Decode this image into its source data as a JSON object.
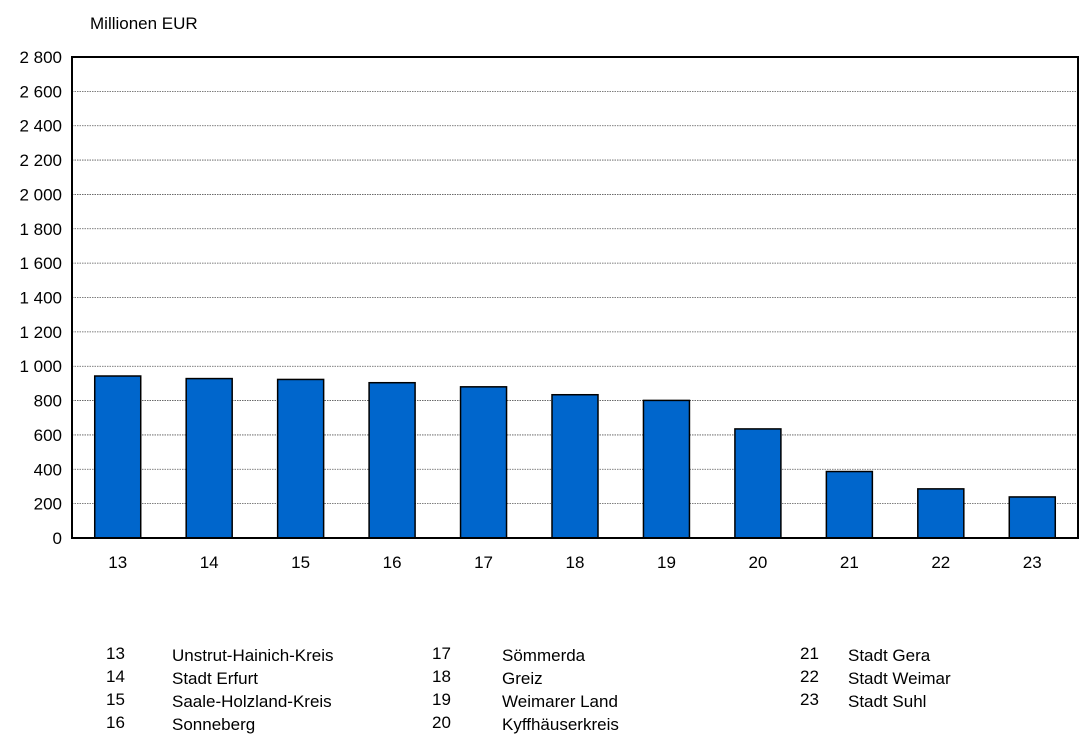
{
  "chart_data": {
    "type": "bar",
    "ylabel": "Millionen EUR",
    "categories": [
      "13",
      "14",
      "15",
      "16",
      "17",
      "18",
      "19",
      "20",
      "21",
      "22",
      "23"
    ],
    "values": [
      943,
      928,
      923,
      904,
      880,
      834,
      801,
      635,
      387,
      286,
      239
    ],
    "ylim": [
      0,
      2800
    ],
    "yticks": [
      "0",
      "200",
      "400",
      "600",
      "800",
      "1 000",
      "1 200",
      "1 400",
      "1 600",
      "1 800",
      "2 000",
      "2 200",
      "2 400",
      "2 600",
      "2 800"
    ],
    "grid": true,
    "bar_color": "#0066cc",
    "legend": [
      {
        "num": "13",
        "name": "Unstrut-Hainich-Kreis"
      },
      {
        "num": "14",
        "name": "Stadt Erfurt"
      },
      {
        "num": "15",
        "name": "Saale-Holzland-Kreis"
      },
      {
        "num": "16",
        "name": "Sonneberg"
      },
      {
        "num": "17",
        "name": "Sömmerda"
      },
      {
        "num": "18",
        "name": "Greiz"
      },
      {
        "num": "19",
        "name": "Weimarer Land"
      },
      {
        "num": "20",
        "name": "Kyffhäuserkreis"
      },
      {
        "num": "21",
        "name": "Stadt Gera"
      },
      {
        "num": "22",
        "name": "Stadt Weimar"
      },
      {
        "num": "23",
        "name": "Stadt Suhl"
      }
    ]
  }
}
